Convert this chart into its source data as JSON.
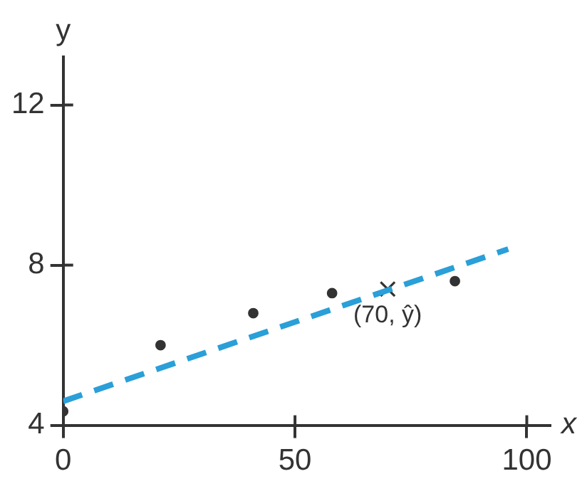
{
  "chart_data": {
    "type": "scatter",
    "xlabel": "x",
    "ylabel": "y",
    "xlim": [
      0,
      105
    ],
    "ylim": [
      4,
      13.2
    ],
    "xticks": [
      0,
      50,
      100
    ],
    "yticks": [
      4,
      8,
      12
    ],
    "series": [
      {
        "type": "line",
        "color": "#2a9fd8",
        "x": [
          0,
          96
        ],
        "values": [
          4.6,
          8.4
        ],
        "line_style": "dashed",
        "marker": "none"
      },
      {
        "type": "scatter",
        "color": "#333333",
        "x": [
          0,
          21,
          41,
          58,
          84.5
        ],
        "values": [
          4.35,
          6.0,
          6.8,
          7.3,
          7.6
        ],
        "marker": "circle"
      },
      {
        "type": "scatter",
        "color": "#333333",
        "x": [
          70
        ],
        "values": [
          7.4
        ],
        "marker": "cross"
      }
    ],
    "annotations": [
      {
        "text": "(70, ŷ)",
        "x": 70,
        "y": 7.4
      }
    ]
  }
}
